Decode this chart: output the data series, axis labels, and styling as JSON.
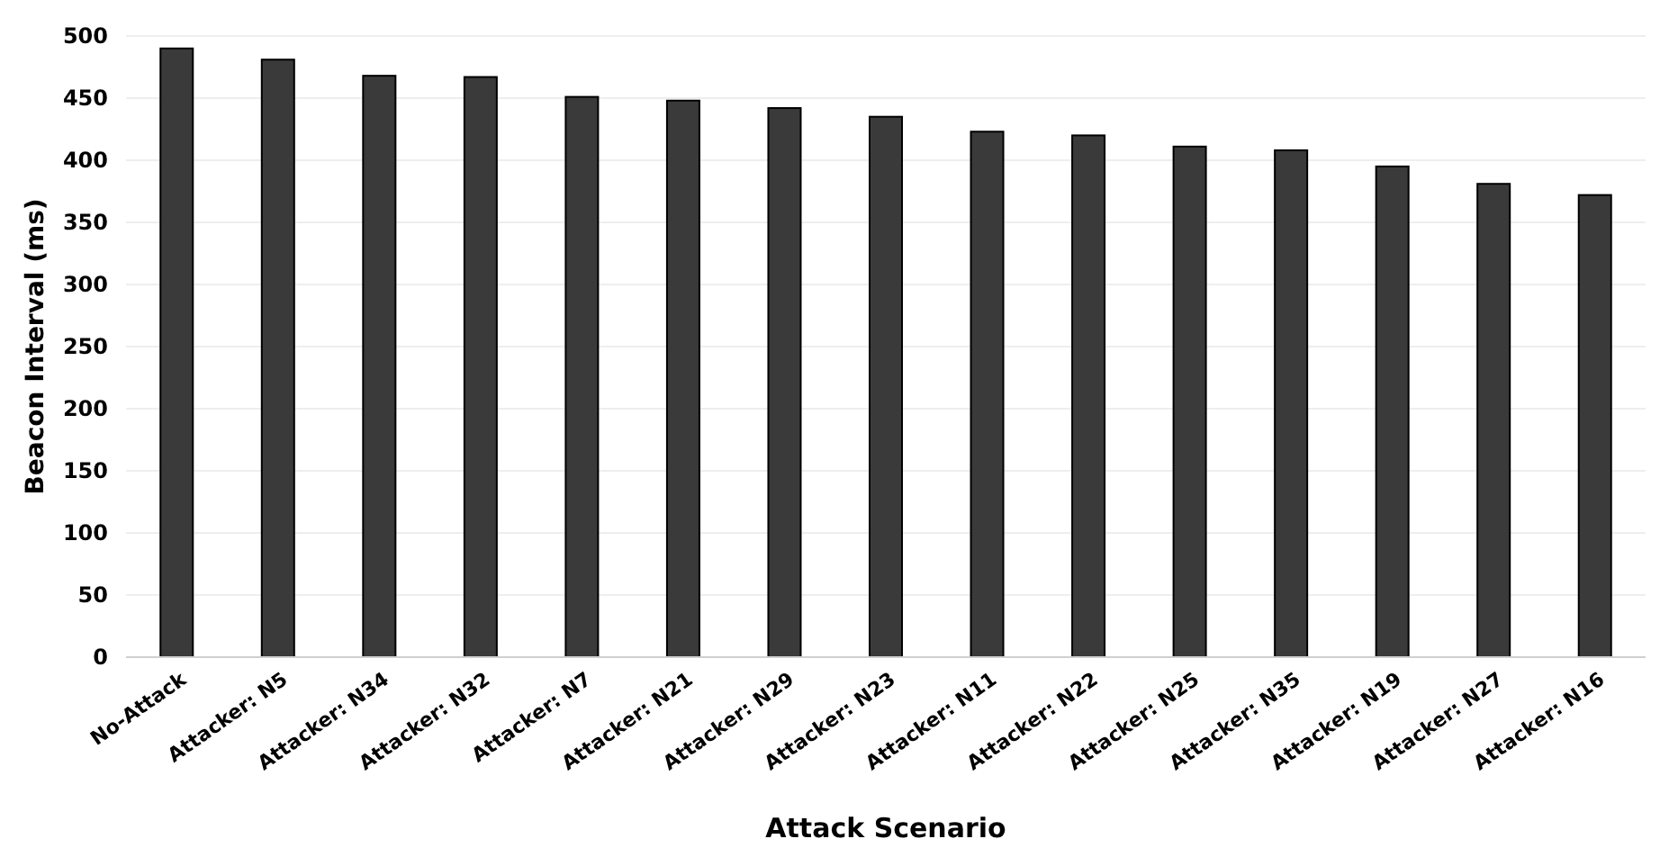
{
  "chart_data": {
    "type": "bar",
    "xlabel": "Attack Scenario",
    "ylabel": "Beacon Interval (ms)",
    "categories": [
      "No-Attack",
      "Attacker: N5",
      "Attacker: N34",
      "Attacker: N32",
      "Attacker: N7",
      "Attacker: N21",
      "Attacker: N29",
      "Attacker: N23",
      "Attacker: N11",
      "Attacker: N22",
      "Attacker: N25",
      "Attacker: N35",
      "Attacker: N19",
      "Attacker: N27",
      "Attacker: N16"
    ],
    "values": [
      490,
      481,
      468,
      467,
      451,
      448,
      442,
      435,
      423,
      420,
      411,
      408,
      395,
      381,
      372
    ],
    "color": "#3a3a3a",
    "ylim": [
      0,
      500
    ],
    "yticks": [
      0,
      50,
      100,
      150,
      200,
      250,
      300,
      350,
      400,
      450,
      500
    ],
    "grid": "y"
  }
}
